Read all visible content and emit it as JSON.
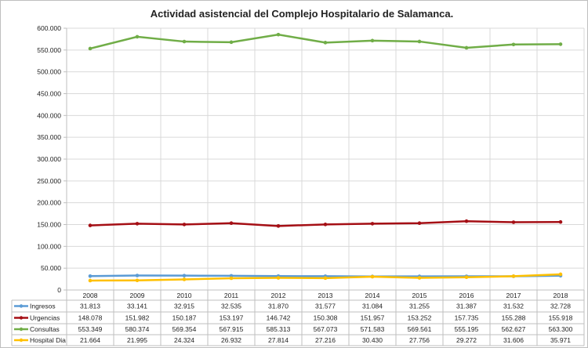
{
  "chart_data": {
    "type": "line",
    "title": "Actividad asistencial del Complejo Hospitalario de Salamanca.",
    "xlabel": "",
    "ylabel": "",
    "ylim": [
      0,
      600000
    ],
    "y_ticks": [
      "0",
      "50.000",
      "100.000",
      "150.000",
      "200.000",
      "250.000",
      "300.000",
      "350.000",
      "400.000",
      "450.000",
      "500.000",
      "550.000",
      "600.000"
    ],
    "grid": true,
    "legend": "data-table-left",
    "categories": [
      "2008",
      "2009",
      "2010",
      "2011",
      "2012",
      "2013",
      "2014",
      "2015",
      "2016",
      "2017",
      "2018"
    ],
    "series": [
      {
        "name": "Ingresos",
        "color": "#5b9bd5",
        "values": [
          31813,
          33141,
          32915,
          32535,
          31870,
          31577,
          31084,
          31255,
          31387,
          31532,
          32728
        ],
        "labels": [
          "31.813",
          "33.141",
          "32.915",
          "32.535",
          "31.870",
          "31.577",
          "31.084",
          "31.255",
          "31.387",
          "31.532",
          "32.728"
        ]
      },
      {
        "name": "Urgencias",
        "color": "#a50f15",
        "values": [
          148078,
          151982,
          150187,
          153197,
          146742,
          150308,
          151957,
          153252,
          157735,
          155288,
          155918
        ],
        "labels": [
          "148.078",
          "151.982",
          "150.187",
          "153.197",
          "146.742",
          "150.308",
          "151.957",
          "153.252",
          "157.735",
          "155.288",
          "155.918"
        ]
      },
      {
        "name": "Consultas",
        "color": "#70ad47",
        "values": [
          553349,
          580374,
          569354,
          567915,
          585313,
          567073,
          571583,
          569561,
          555195,
          562627,
          563300
        ],
        "labels": [
          "553.349",
          "580.374",
          "569.354",
          "567.915",
          "585.313",
          "567.073",
          "571.583",
          "569.561",
          "555.195",
          "562.627",
          "563.300"
        ]
      },
      {
        "name": "Hospital Dia",
        "color": "#ffc000",
        "values": [
          21664,
          21995,
          24324,
          26932,
          27814,
          27216,
          30430,
          27756,
          29272,
          31606,
          35971
        ],
        "labels": [
          "21.664",
          "21.995",
          "24.324",
          "26.932",
          "27.814",
          "27.216",
          "30.430",
          "27.756",
          "29.272",
          "31.606",
          "35.971"
        ]
      }
    ]
  }
}
